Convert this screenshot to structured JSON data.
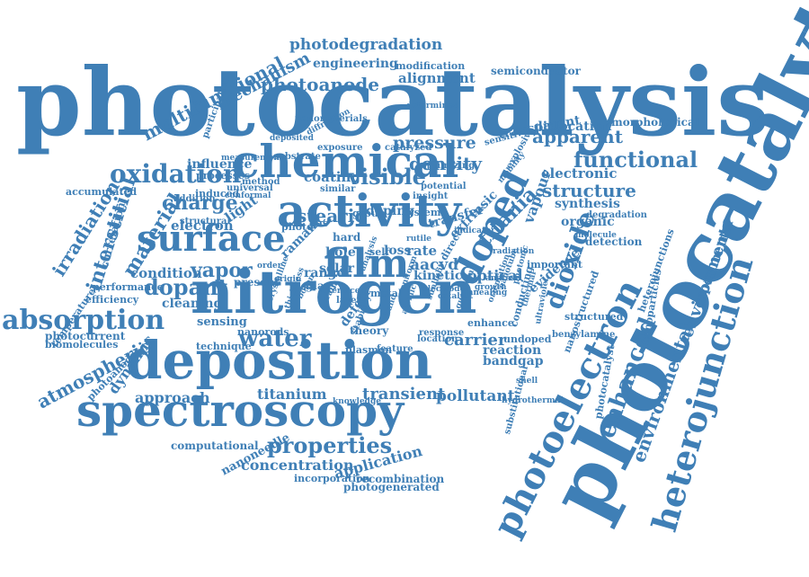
{
  "color": "#3f7fb6",
  "words": [
    "photocatalysis",
    "photocatalytic",
    "nitrogen",
    "deposition",
    "spectroscopy",
    "chemical",
    "activity",
    "surface",
    "film",
    "doped",
    "photoelectron",
    "heterojunction",
    "absorption",
    "oxidation",
    "dioxide",
    "enhanced",
    "environmental",
    "environment",
    "water",
    "properties",
    "photodegradation",
    "engineering",
    "photoanode",
    "alignment",
    "mechanism",
    "multifunctional",
    "functional",
    "apparent",
    "structure",
    "electronic",
    "vapour",
    "titania",
    "visible",
    "density",
    "pressure",
    "coating",
    "stearic",
    "charge",
    "electron",
    "material",
    "interstitial",
    "irradiation",
    "atmospheric",
    "dynamic",
    "photoanodes",
    "temperature",
    "vapor",
    "dopant",
    "condition",
    "cleaning",
    "efficiency",
    "photocurrent",
    "biomolecules",
    "transient",
    "titanium",
    "pollutant",
    "carrier",
    "reaction",
    "bandgap",
    "approach",
    "computational",
    "nanoneedle",
    "concentration",
    "application",
    "recombination",
    "photogenerated",
    "incorporation",
    "kinetic",
    "aacvd",
    "optical",
    "loss",
    "rate",
    "hole",
    "solar",
    "range",
    "raman",
    "doping",
    "transfer",
    "extrinsic",
    "sensing",
    "technique",
    "present",
    "theory",
    "plasmon",
    "location",
    "synthesis",
    "organic",
    "detection",
    "dislocation",
    "morphological",
    "transparent",
    "semiconductor",
    "modification",
    "light",
    "influence",
    "processes",
    "induced",
    "accumulated",
    "correlation",
    "performance",
    "nanorods",
    "undoped",
    "nanostructured",
    "photocatalyst",
    "substitutional",
    "benzylamine",
    "experimental",
    "structured",
    "heterojunctions",
    "nanoparticles",
    "enhance",
    "conducting",
    "evidence",
    "important",
    "response",
    "feature",
    "metal",
    "defect",
    "layer",
    "stability",
    "glass",
    "system",
    "group",
    "hard",
    "self",
    "photo",
    "gas",
    "direct",
    "sensitive",
    "insight",
    "potential",
    "similar",
    "exposure",
    "catalyzed",
    "nanomaterials",
    "diffraction",
    "substrate",
    "measurement",
    "universal",
    "conformal",
    "addition",
    "participation",
    "method",
    "structural",
    "degradation",
    "explosive",
    "mobility",
    "molecule",
    "radiation",
    "optimizing",
    "determined",
    "deposited",
    "boron",
    "analysis",
    "uniform",
    "sunlight",
    "quantum",
    "crystalline",
    "thickness",
    "grain",
    "band",
    "atomic",
    "orientation",
    "nanotube",
    "photonic",
    "thermal",
    "ultraviolet",
    "knowledge",
    "hydrothermal",
    "shell",
    "indicator",
    "order",
    "origin",
    "phase",
    "interface",
    "electrode",
    "catalyst",
    "annealing",
    "growth",
    "anatase",
    "rutile"
  ]
}
